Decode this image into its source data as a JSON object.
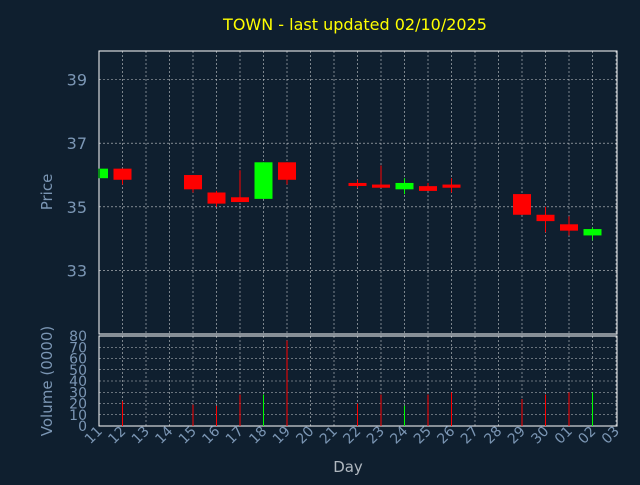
{
  "chart_data": {
    "type": "candlestick",
    "title": "TOWN - last updated 02/10/2025",
    "xlabel": "Day",
    "price_panel": {
      "ylabel": "Price",
      "ylim": [
        31.0,
        39.9
      ],
      "yticks": [
        "33",
        "35",
        "37",
        "39"
      ],
      "grid": true
    },
    "volume_panel": {
      "ylabel": "Volume (0000)",
      "ylim": [
        0,
        80
      ],
      "yticks": [
        "0",
        "10",
        "20",
        "30",
        "40",
        "50",
        "60",
        "70",
        "80"
      ],
      "grid": true
    },
    "x_tick_labels": [
      "11",
      "12",
      "13",
      "14",
      "15",
      "16",
      "17",
      "18",
      "19",
      "20",
      "21",
      "22",
      "23",
      "24",
      "25",
      "26",
      "27",
      "28",
      "29",
      "30",
      "01",
      "02",
      "03"
    ],
    "colors": {
      "background": "#0f1f2f",
      "up": "#00ff00",
      "down": "#ff0000",
      "grid": "#ffffff",
      "text": "#7b96b4",
      "title": "#ffff00"
    },
    "candles": [
      {
        "day": "11",
        "open": 35.9,
        "close": 36.2,
        "high": 36.2,
        "low": 35.9,
        "volume": 0
      },
      {
        "day": "12",
        "open": 36.2,
        "close": 35.85,
        "high": 36.2,
        "low": 35.7,
        "volume": 22
      },
      {
        "day": "15",
        "open": 36.0,
        "close": 35.55,
        "high": 36.0,
        "low": 35.45,
        "volume": 19
      },
      {
        "day": "16",
        "open": 35.45,
        "close": 35.1,
        "high": 35.5,
        "low": 35.0,
        "volume": 18
      },
      {
        "day": "17",
        "open": 35.3,
        "close": 35.15,
        "high": 36.15,
        "low": 35.15,
        "volume": 28
      },
      {
        "day": "18",
        "open": 35.25,
        "close": 36.4,
        "high": 36.4,
        "low": 35.25,
        "volume": 28
      },
      {
        "day": "19",
        "open": 36.4,
        "close": 35.85,
        "high": 36.4,
        "low": 35.7,
        "volume": 76
      },
      {
        "day": "22",
        "open": 35.75,
        "close": 35.7,
        "high": 35.85,
        "low": 35.6,
        "volume": 20
      },
      {
        "day": "23",
        "open": 35.7,
        "close": 35.6,
        "high": 36.3,
        "low": 35.6,
        "volume": 28
      },
      {
        "day": "24",
        "open": 35.55,
        "close": 35.75,
        "high": 35.9,
        "low": 35.4,
        "volume": 18
      },
      {
        "day": "25",
        "open": 35.65,
        "close": 35.5,
        "high": 35.75,
        "low": 35.5,
        "volume": 28
      },
      {
        "day": "26",
        "open": 35.7,
        "close": 35.6,
        "high": 35.9,
        "low": 35.45,
        "volume": 30
      },
      {
        "day": "29",
        "open": 35.4,
        "close": 34.75,
        "high": 35.4,
        "low": 34.75,
        "volume": 24
      },
      {
        "day": "30",
        "open": 34.75,
        "close": 34.55,
        "high": 35.0,
        "low": 34.2,
        "volume": 28
      },
      {
        "day": "01",
        "open": 34.45,
        "close": 34.25,
        "high": 34.7,
        "low": 34.1,
        "volume": 30
      },
      {
        "day": "02",
        "open": 34.1,
        "close": 34.3,
        "high": 34.35,
        "low": 33.95,
        "volume": 30
      }
    ]
  }
}
